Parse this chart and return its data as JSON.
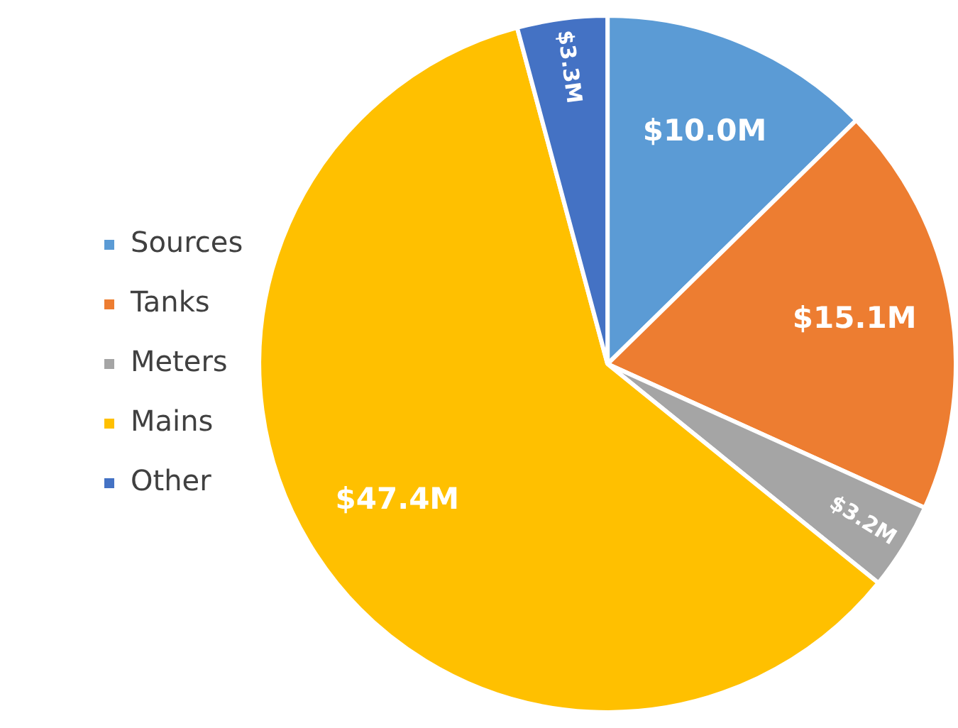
{
  "chart_data": {
    "type": "pie",
    "categories": [
      "Sources",
      "Tanks",
      "Meters",
      "Mains",
      "Other"
    ],
    "values": [
      10.0,
      15.1,
      3.2,
      47.4,
      3.3
    ],
    "colors": [
      "#5b9bd5",
      "#ed7d31",
      "#a5a5a5",
      "#ffc000",
      "#4472c4"
    ],
    "value_labels": [
      "$10.0M",
      "$15.1M",
      "$3.2M",
      "$47.4M",
      "$3.3M"
    ],
    "legend": "left"
  }
}
